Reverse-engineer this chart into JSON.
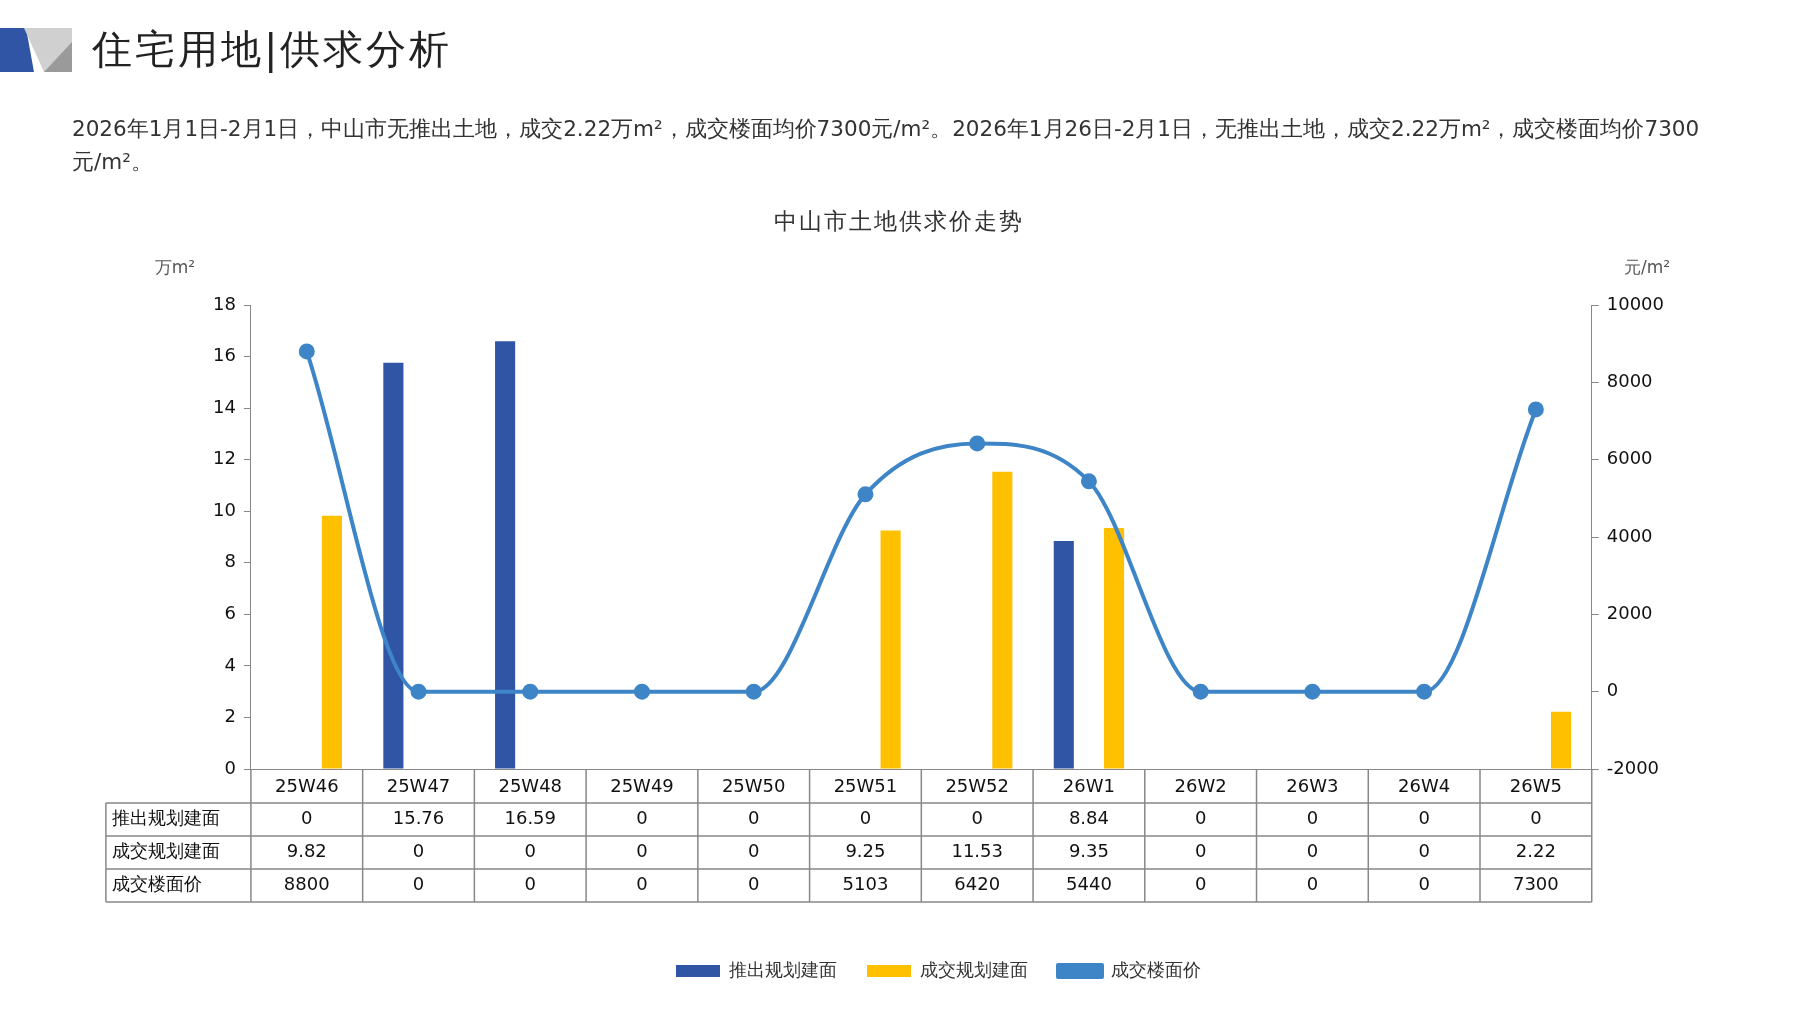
{
  "chart_data": {
    "type": "bar",
    "title": "中山市土地供求价走势",
    "subtitle": "2026年1月1日-2月1日，中山市无推出土地，成交2.22万m²，成交楼面均价7300元/m²。2026年1月26日-2月1日，无推出土地，成交2.22万m²，成交楼面均价7300元/m²。",
    "annotations": [
      "住宅用地|供求分析"
    ],
    "ylabel": "万m²",
    "y2label": "元/m²",
    "categories": [
      "25W46",
      "25W47",
      "25W48",
      "25W49",
      "25W50",
      "25W51",
      "25W52",
      "26W1",
      "26W2",
      "26W3",
      "26W4",
      "26W5"
    ],
    "series": [
      {
        "name": "推出规划建面",
        "color": "#2f55a4",
        "values": [
          0,
          15.76,
          16.59,
          0,
          0,
          0,
          0,
          8.84,
          0,
          0,
          0,
          0
        ]
      },
      {
        "name": "成交规划建面",
        "color": "#ffc000",
        "values": [
          9.82,
          0,
          0,
          0,
          0,
          9.25,
          11.53,
          9.35,
          0,
          0,
          0,
          2.22
        ]
      },
      {
        "name": "成交楼面价",
        "type": "line",
        "axis": "y2",
        "color": "#3d85c6",
        "values": [
          8800,
          0,
          0,
          0,
          0,
          5103,
          6420,
          5440,
          0,
          0,
          0,
          7300
        ]
      }
    ],
    "ylim": [
      0,
      18
    ],
    "yticks": [
      0,
      2,
      4,
      6,
      8,
      10,
      12,
      14,
      16,
      18
    ],
    "y2lim": [
      -2000,
      10000
    ],
    "y2ticks": [
      -2000,
      0,
      2000,
      4000,
      6000,
      8000,
      10000
    ],
    "grid": false,
    "legend": "bottom",
    "data_labels": true,
    "marker": "circle"
  }
}
